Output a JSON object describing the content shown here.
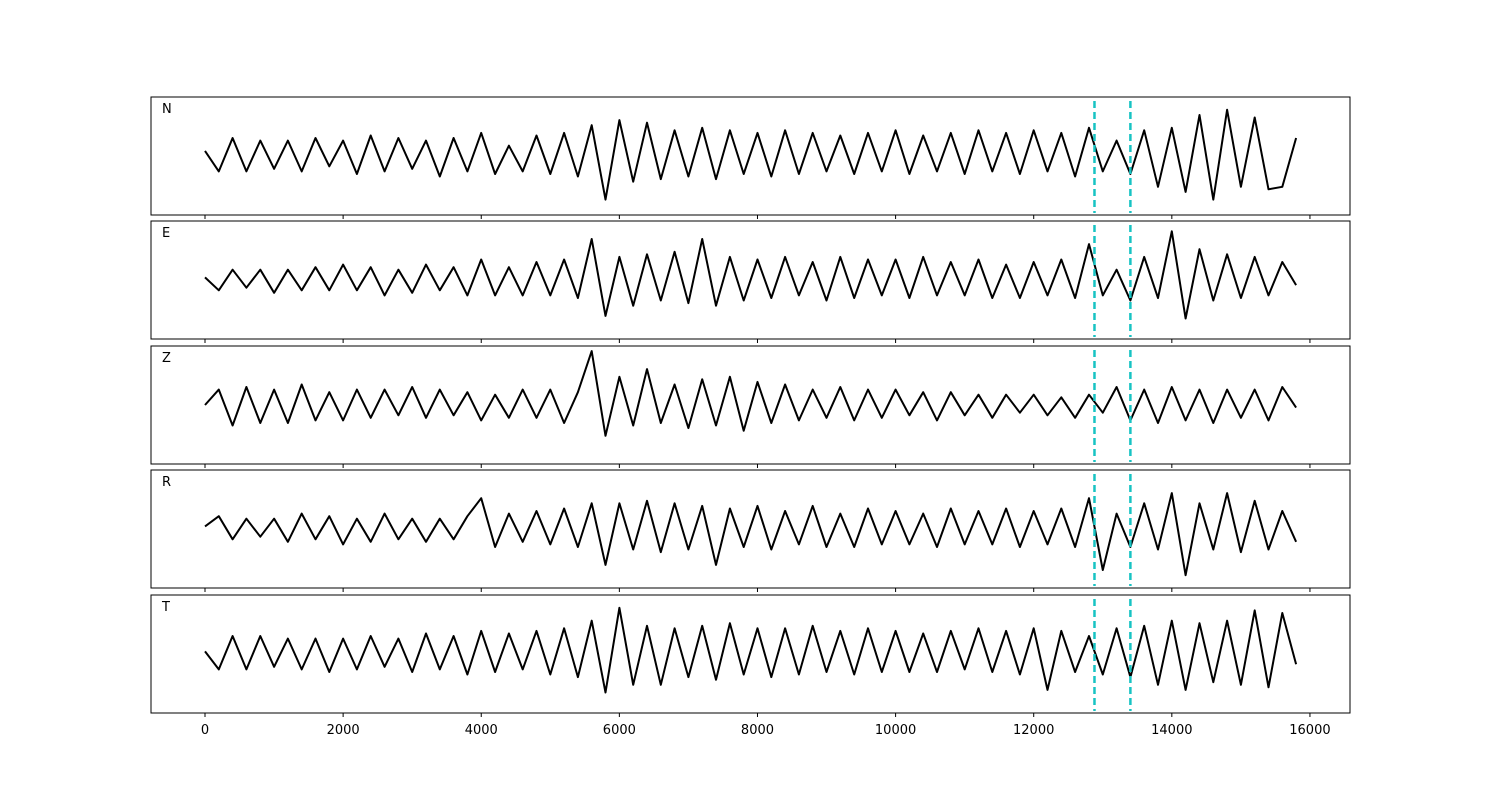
{
  "chart_data": {
    "type": "line",
    "xlim": [
      -782,
      16580
    ],
    "xticks": [
      0,
      2000,
      4000,
      6000,
      8000,
      10000,
      12000,
      14000,
      16000
    ],
    "ylim": [
      -1.15,
      1.15
    ],
    "vlines": [
      12880,
      13400
    ],
    "vline_color": "#17c3c3",
    "x": [
      0,
      200,
      400,
      600,
      800,
      1000,
      1200,
      1400,
      1600,
      1800,
      2000,
      2200,
      2400,
      2600,
      2800,
      3000,
      3200,
      3400,
      3600,
      3800,
      4000,
      4200,
      4400,
      4600,
      4800,
      5000,
      5200,
      5400,
      5600,
      5800,
      6000,
      6200,
      6400,
      6600,
      6800,
      7000,
      7200,
      7400,
      7600,
      7800,
      8000,
      8200,
      8400,
      8600,
      8800,
      9000,
      9200,
      9400,
      9600,
      9800,
      10000,
      10200,
      10400,
      10600,
      10800,
      11000,
      11200,
      11400,
      11600,
      11800,
      12000,
      12200,
      12400,
      12600,
      12800,
      13000,
      13200,
      13400,
      13600,
      13800,
      14000,
      14200,
      14400,
      14600,
      14800,
      15000,
      15200,
      15400,
      15600,
      15800
    ],
    "series": [
      {
        "name": "N",
        "color": "#000000",
        "values": [
          0.1,
          -0.3,
          0.35,
          -0.3,
          0.3,
          -0.25,
          0.3,
          -0.3,
          0.35,
          -0.2,
          0.3,
          -0.35,
          0.4,
          -0.3,
          0.35,
          -0.25,
          0.3,
          -0.4,
          0.35,
          -0.3,
          0.45,
          -0.35,
          0.2,
          -0.3,
          0.4,
          -0.35,
          0.45,
          -0.4,
          0.6,
          -0.85,
          0.7,
          -0.5,
          0.65,
          -0.45,
          0.5,
          -0.4,
          0.55,
          -0.45,
          0.5,
          -0.35,
          0.45,
          -0.4,
          0.5,
          -0.35,
          0.45,
          -0.3,
          0.4,
          -0.35,
          0.45,
          -0.3,
          0.5,
          -0.35,
          0.4,
          -0.3,
          0.45,
          -0.35,
          0.5,
          -0.3,
          0.45,
          -0.35,
          0.5,
          -0.3,
          0.45,
          -0.4,
          0.55,
          -0.3,
          0.3,
          -0.35,
          0.5,
          -0.6,
          0.55,
          -0.7,
          0.8,
          -0.85,
          0.9,
          -0.6,
          0.75,
          -0.65,
          -0.6,
          0.35
        ]
      },
      {
        "name": "E",
        "color": "#000000",
        "values": [
          0.05,
          -0.2,
          0.2,
          -0.15,
          0.2,
          -0.25,
          0.2,
          -0.2,
          0.25,
          -0.2,
          0.3,
          -0.2,
          0.25,
          -0.3,
          0.2,
          -0.25,
          0.3,
          -0.2,
          0.25,
          -0.3,
          0.4,
          -0.3,
          0.25,
          -0.3,
          0.35,
          -0.3,
          0.4,
          -0.35,
          0.8,
          -0.7,
          0.45,
          -0.5,
          0.5,
          -0.4,
          0.55,
          -0.45,
          0.8,
          -0.5,
          0.45,
          -0.4,
          0.4,
          -0.35,
          0.45,
          -0.3,
          0.35,
          -0.4,
          0.45,
          -0.35,
          0.4,
          -0.3,
          0.4,
          -0.35,
          0.45,
          -0.3,
          0.35,
          -0.3,
          0.4,
          -0.35,
          0.3,
          -0.35,
          0.35,
          -0.3,
          0.4,
          -0.35,
          0.7,
          -0.3,
          0.2,
          -0.4,
          0.45,
          -0.35,
          0.95,
          -0.75,
          0.6,
          -0.4,
          0.5,
          -0.35,
          0.45,
          -0.3,
          0.35,
          -0.1
        ]
      },
      {
        "name": "Z",
        "color": "#000000",
        "values": [
          0.0,
          0.3,
          -0.4,
          0.35,
          -0.35,
          0.3,
          -0.35,
          0.4,
          -0.3,
          0.25,
          -0.3,
          0.3,
          -0.25,
          0.3,
          -0.2,
          0.35,
          -0.25,
          0.3,
          -0.2,
          0.25,
          -0.3,
          0.2,
          -0.25,
          0.3,
          -0.25,
          0.3,
          -0.35,
          0.25,
          1.05,
          -0.6,
          0.55,
          -0.4,
          0.7,
          -0.35,
          0.4,
          -0.45,
          0.5,
          -0.4,
          0.55,
          -0.5,
          0.45,
          -0.35,
          0.4,
          -0.3,
          0.3,
          -0.25,
          0.35,
          -0.3,
          0.3,
          -0.25,
          0.3,
          -0.2,
          0.25,
          -0.3,
          0.25,
          -0.2,
          0.2,
          -0.25,
          0.2,
          -0.15,
          0.2,
          -0.2,
          0.15,
          -0.25,
          0.2,
          -0.15,
          0.35,
          -0.3,
          0.3,
          -0.35,
          0.35,
          -0.3,
          0.3,
          -0.35,
          0.3,
          -0.25,
          0.3,
          -0.3,
          0.35,
          -0.05
        ]
      },
      {
        "name": "R",
        "color": "#000000",
        "values": [
          0.05,
          0.25,
          -0.2,
          0.2,
          -0.15,
          0.2,
          -0.25,
          0.3,
          -0.2,
          0.25,
          -0.3,
          0.2,
          -0.25,
          0.3,
          -0.2,
          0.2,
          -0.25,
          0.2,
          -0.2,
          0.25,
          0.6,
          -0.35,
          0.3,
          -0.25,
          0.35,
          -0.3,
          0.4,
          -0.35,
          0.5,
          -0.7,
          0.5,
          -0.4,
          0.55,
          -0.45,
          0.5,
          -0.4,
          0.45,
          -0.7,
          0.4,
          -0.35,
          0.45,
          -0.4,
          0.35,
          -0.3,
          0.45,
          -0.35,
          0.3,
          -0.35,
          0.4,
          -0.3,
          0.35,
          -0.3,
          0.3,
          -0.35,
          0.4,
          -0.3,
          0.35,
          -0.3,
          0.4,
          -0.35,
          0.35,
          -0.3,
          0.4,
          -0.35,
          0.6,
          -0.8,
          0.3,
          -0.35,
          0.5,
          -0.4,
          0.7,
          -0.9,
          0.5,
          -0.4,
          0.7,
          -0.45,
          0.55,
          -0.4,
          0.35,
          -0.25
        ]
      },
      {
        "name": "T",
        "color": "#000000",
        "values": [
          0.05,
          -0.3,
          0.35,
          -0.3,
          0.35,
          -0.25,
          0.3,
          -0.3,
          0.3,
          -0.35,
          0.3,
          -0.3,
          0.35,
          -0.25,
          0.3,
          -0.35,
          0.4,
          -0.3,
          0.35,
          -0.4,
          0.45,
          -0.35,
          0.4,
          -0.3,
          0.45,
          -0.4,
          0.5,
          -0.45,
          0.65,
          -0.75,
          0.9,
          -0.6,
          0.55,
          -0.6,
          0.5,
          -0.45,
          0.55,
          -0.5,
          0.6,
          -0.4,
          0.5,
          -0.45,
          0.5,
          -0.4,
          0.55,
          -0.35,
          0.45,
          -0.4,
          0.5,
          -0.35,
          0.45,
          -0.35,
          0.4,
          -0.35,
          0.45,
          -0.3,
          0.5,
          -0.35,
          0.45,
          -0.4,
          0.5,
          -0.7,
          0.45,
          -0.35,
          0.35,
          -0.4,
          0.5,
          -0.45,
          0.55,
          -0.6,
          0.65,
          -0.7,
          0.6,
          -0.55,
          0.65,
          -0.6,
          0.85,
          -0.65,
          0.8,
          -0.2
        ]
      }
    ]
  }
}
